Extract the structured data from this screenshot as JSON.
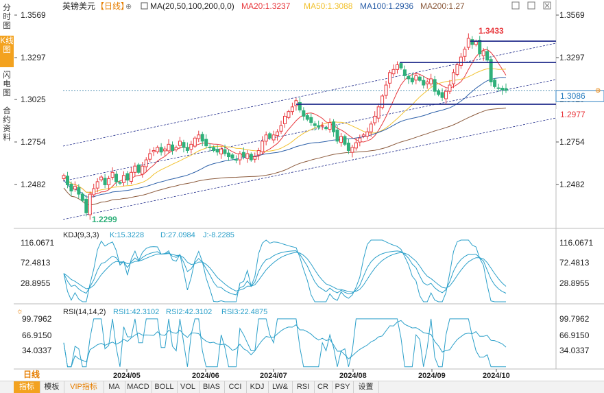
{
  "sidebar": {
    "tabs": [
      {
        "label": "分时图",
        "active": false
      },
      {
        "label": "K线图",
        "active": true
      },
      {
        "label": "闪电图",
        "active": false
      },
      {
        "label": "合约资料",
        "active": false
      }
    ]
  },
  "header": {
    "symbol": "英镑美元",
    "period": "【日线】",
    "ma_label": "MA(20,50,100,200,0,0)",
    "ma20": "MA20:1.3237",
    "ma50": "MA50:1.3088",
    "ma100": "MA100:1.2936",
    "ma200": "MA200:1.27"
  },
  "colors": {
    "ma20": "#e8383d",
    "ma50": "#f2c230",
    "ma100": "#2b5fa8",
    "ma200": "#8b5a3c",
    "up": "#e8383d",
    "down": "#2fb07a",
    "kdj_line": "#2a9fc9",
    "accent": "#f3a21f"
  },
  "main_axis": {
    "ticks": [
      "1.3569",
      "1.3297",
      "1.3025",
      "1.2754",
      "1.2482"
    ],
    "current_price": "1.3086",
    "level_price": "1.2977",
    "high_label": "1.3433",
    "low_label": "1.2299"
  },
  "kdj": {
    "label": "KDJ(9,3,3)",
    "k": "K:15.3228",
    "d": "D:27.0984",
    "j": "J:-8.2285",
    "ticks": [
      "116.0671",
      "72.4813",
      "28.8955"
    ]
  },
  "rsi": {
    "label": "RSI(14,14,2)",
    "rsi1": "RSI1:42.3102",
    "rsi2": "RSI2:42.3102",
    "rsi3": "RSI3:22.4875",
    "ticks": [
      "99.7962",
      "66.9150",
      "34.0337"
    ]
  },
  "x_axis": {
    "months": [
      "2024/05",
      "2024/06",
      "2024/07",
      "2024/08",
      "2024/09",
      "2024/10"
    ]
  },
  "bottom": {
    "period_label": "日线",
    "tabs": [
      "指标",
      "模板",
      "VIP指标",
      "MA",
      "MACD",
      "BOLL",
      "VOL",
      "BIAS",
      "CCI",
      "KDJ",
      "LW&",
      "RSI",
      "CR",
      "PSY",
      "设置"
    ]
  },
  "chart_data": {
    "type": "candlestick",
    "symbol": "英镑美元",
    "ylim": [
      1.221,
      1.362
    ],
    "last_close": 1.3086,
    "high": 1.3433,
    "low": 1.2299,
    "horizontal_levels": [
      1.3355,
      1.325,
      1.2977
    ],
    "ma_values": {
      "MA20": 1.3237,
      "MA50": 1.3088,
      "MA100": 1.2936,
      "MA200": 1.27
    },
    "kdj_values": {
      "K": 15.3228,
      "D": 27.0984,
      "J": -8.2285
    },
    "rsi_values": {
      "RSI1": 42.3102,
      "RSI2": 42.3102,
      "RSI3": 22.4875
    },
    "closes": [
      1.254,
      1.248,
      1.244,
      1.247,
      1.242,
      1.238,
      1.23,
      1.242,
      1.2455,
      1.25,
      1.253,
      1.248,
      1.252,
      1.256,
      1.25,
      1.249,
      1.254,
      1.251,
      1.256,
      1.26,
      1.256,
      1.26,
      1.264,
      1.268,
      1.27,
      1.272,
      1.269,
      1.271,
      1.274,
      1.27,
      1.272,
      1.276,
      1.272,
      1.27,
      1.274,
      1.278,
      1.28,
      1.276,
      1.273,
      1.272,
      1.27,
      1.269,
      1.271,
      1.268,
      1.266,
      1.265,
      1.264,
      1.268,
      1.266,
      1.268,
      1.264,
      1.266,
      1.27,
      1.276,
      1.28,
      1.278,
      1.28,
      1.282,
      1.286,
      1.292,
      1.295,
      1.298,
      1.302,
      1.296,
      1.292,
      1.29,
      1.288,
      1.286,
      1.285,
      1.286,
      1.284,
      1.288,
      1.282,
      1.276,
      1.279,
      1.274,
      1.27,
      1.272,
      1.275,
      1.278,
      1.28,
      1.282,
      1.287,
      1.292,
      1.298,
      1.305,
      1.312,
      1.32,
      1.322,
      1.325,
      1.323,
      1.318,
      1.316,
      1.314,
      1.318,
      1.315,
      1.312,
      1.314,
      1.316,
      1.308,
      1.306,
      1.304,
      1.308,
      1.312,
      1.32,
      1.325,
      1.33,
      1.335,
      1.342,
      1.338,
      1.34,
      1.332,
      1.334,
      1.328,
      1.314,
      1.311,
      1.31,
      1.309,
      1.3086
    ]
  }
}
